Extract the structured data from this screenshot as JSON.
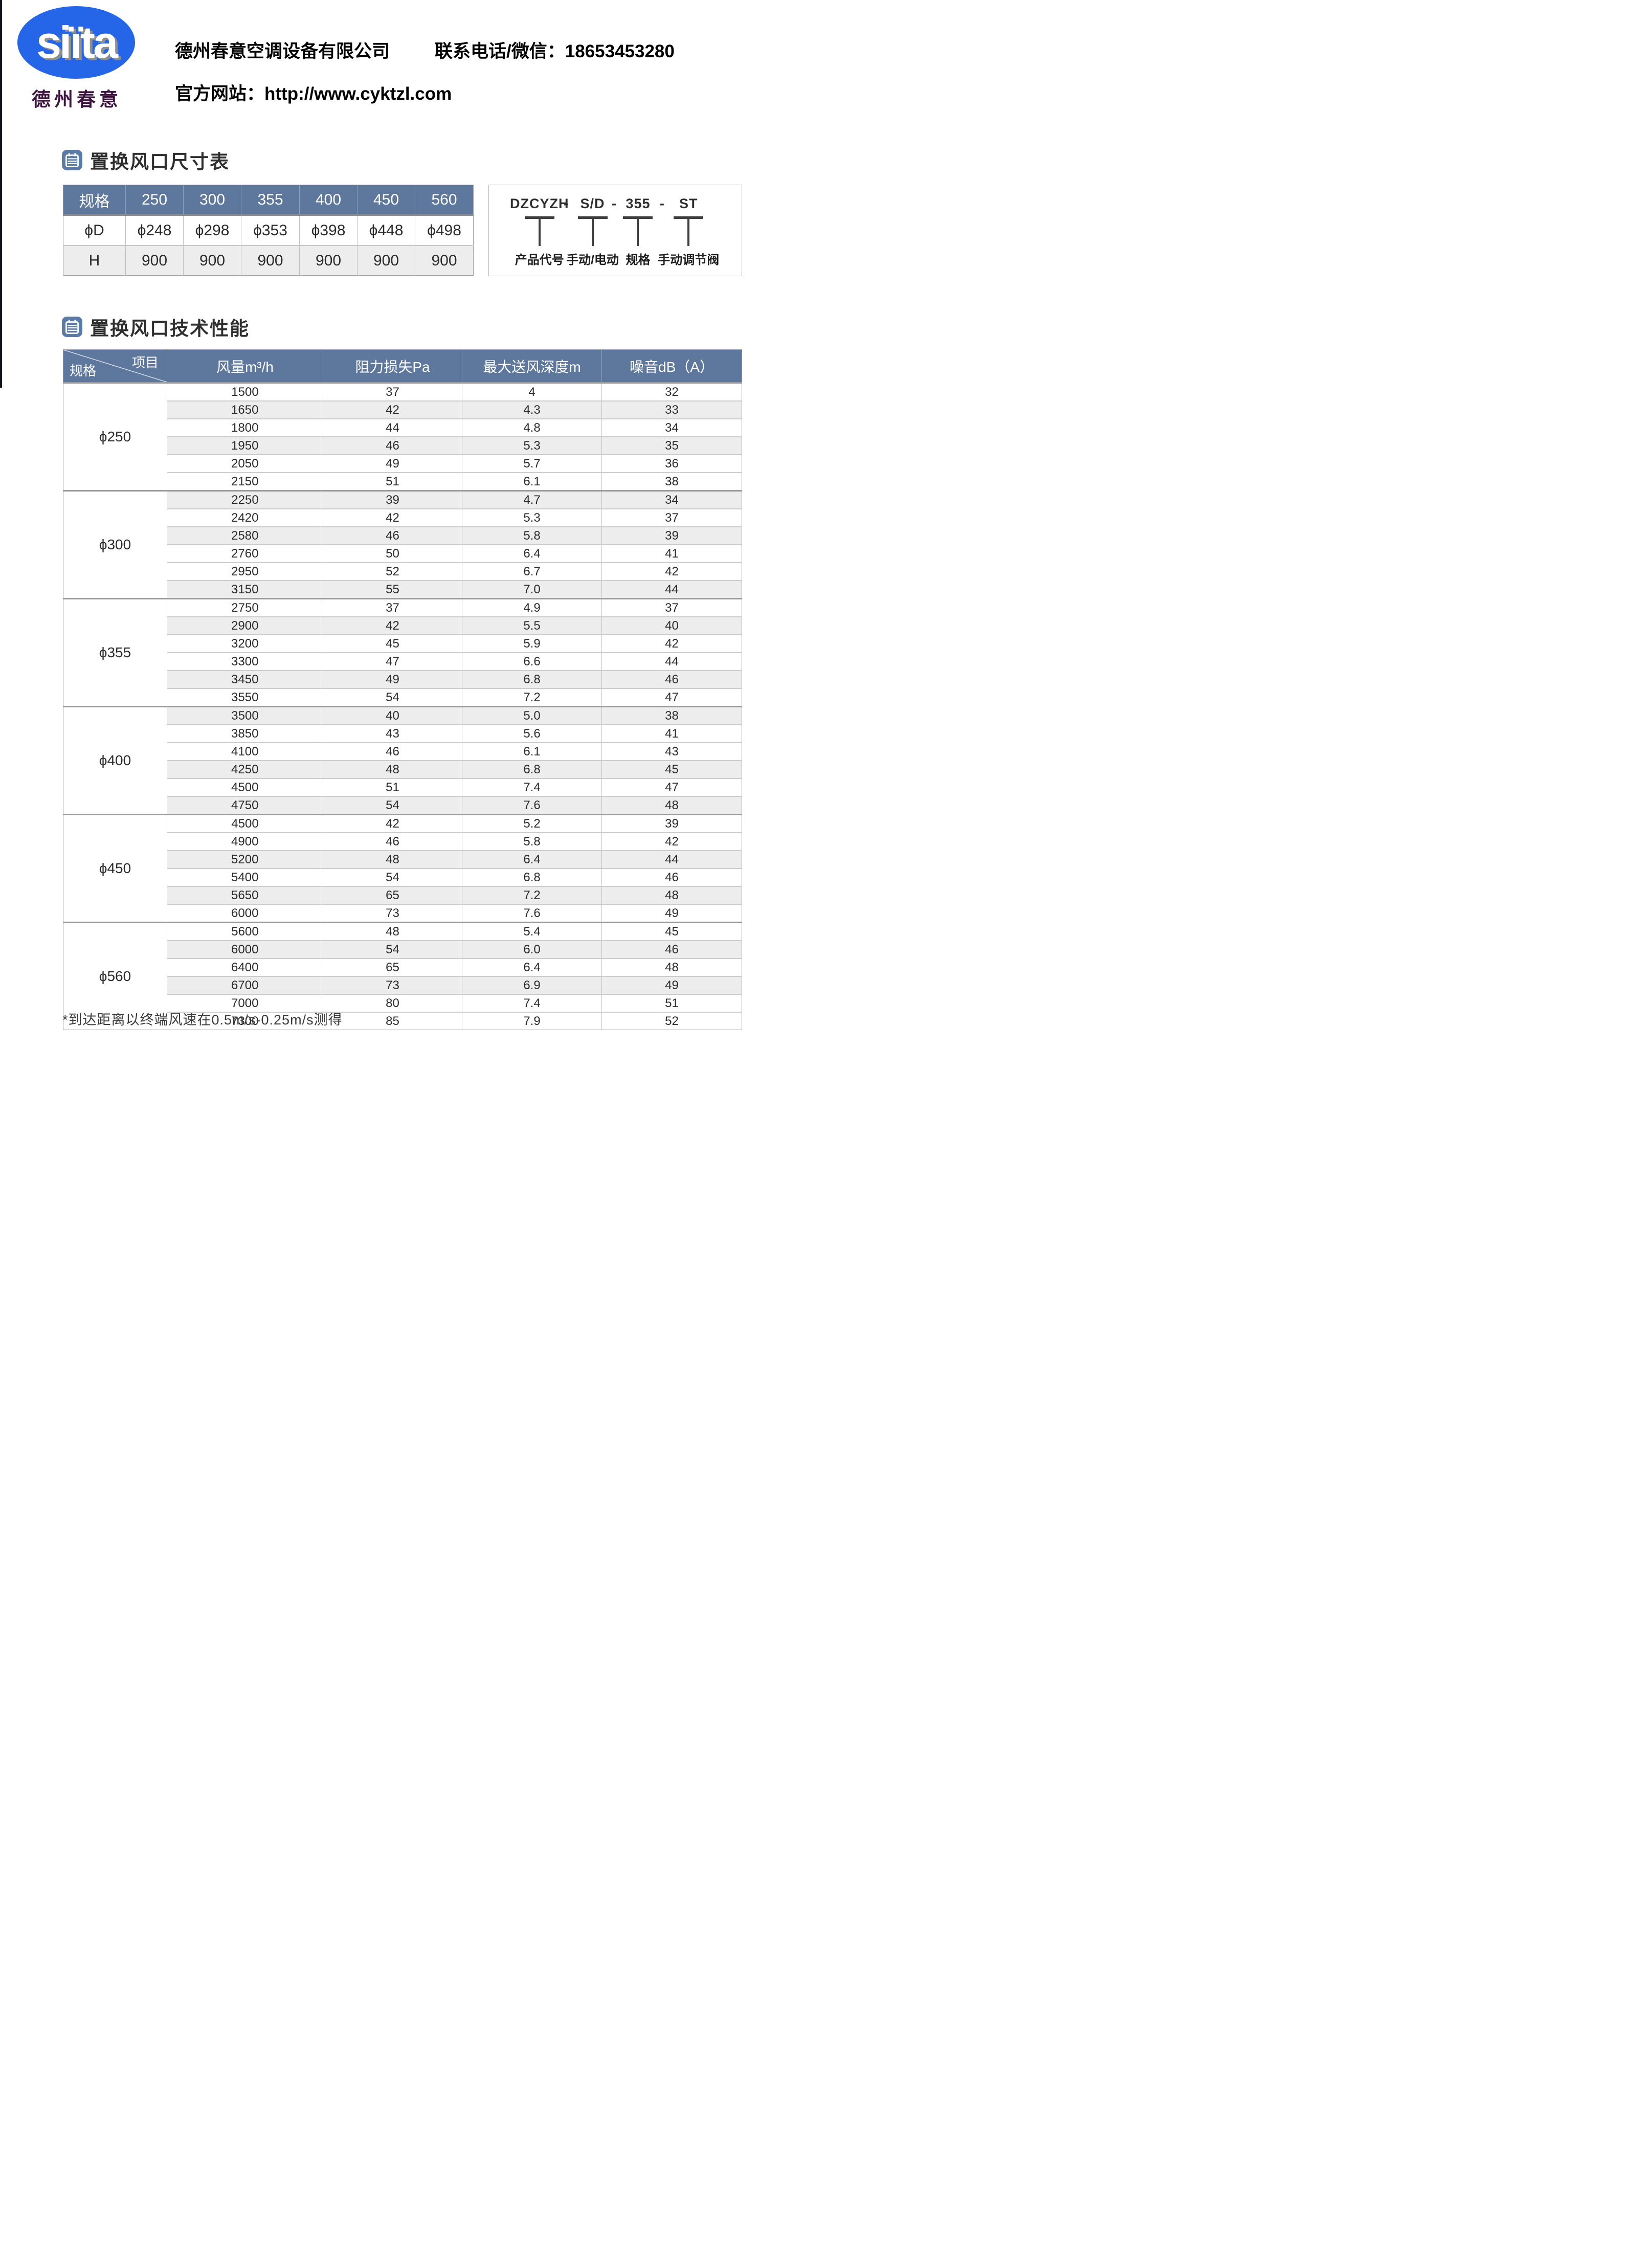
{
  "header": {
    "logo_text": "siïta",
    "logo_subtitle": "德州春意",
    "company_name": "德州春意空调设备有限公司",
    "contact": "联系电话/微信：18653453280",
    "website": "官方网站：http://www.cyktzl.com"
  },
  "sections": {
    "size_title": "置换风口尺寸表",
    "perf_title": "置换风口技术性能"
  },
  "size_table": {
    "header": [
      "规格",
      "250",
      "300",
      "355",
      "400",
      "450",
      "560"
    ],
    "rows": [
      {
        "label": "ϕD",
        "values": [
          "ϕ248",
          "ϕ298",
          "ϕ353",
          "ϕ398",
          "ϕ448",
          "ϕ498"
        ]
      },
      {
        "label": "H",
        "values": [
          "900",
          "900",
          "900",
          "900",
          "900",
          "900"
        ]
      }
    ]
  },
  "code_diagram": {
    "parts": [
      "DZCYZH",
      "S/D",
      "355",
      "ST"
    ],
    "separator": "-",
    "labels": [
      "产品代号",
      "手动/电动",
      "规格",
      "手动调节阀"
    ]
  },
  "perf_table": {
    "corner_top": "项目",
    "corner_bottom": "规格",
    "columns": [
      "风量m³/h",
      "阻力损失Pa",
      "最大送风深度m",
      "噪音dB（A）"
    ],
    "groups": [
      {
        "spec": "ϕ250",
        "rows": [
          [
            "1500",
            "37",
            "4",
            "32"
          ],
          [
            "1650",
            "42",
            "4.3",
            "33"
          ],
          [
            "1800",
            "44",
            "4.8",
            "34"
          ],
          [
            "1950",
            "46",
            "5.3",
            "35"
          ],
          [
            "2050",
            "49",
            "5.7",
            "36"
          ],
          [
            "2150",
            "51",
            "6.1",
            "38"
          ]
        ],
        "shaded": [
          false,
          true,
          false,
          true,
          false,
          false
        ]
      },
      {
        "spec": "ϕ300",
        "rows": [
          [
            "2250",
            "39",
            "4.7",
            "34"
          ],
          [
            "2420",
            "42",
            "5.3",
            "37"
          ],
          [
            "2580",
            "46",
            "5.8",
            "39"
          ],
          [
            "2760",
            "50",
            "6.4",
            "41"
          ],
          [
            "2950",
            "52",
            "6.7",
            "42"
          ],
          [
            "3150",
            "55",
            "7.0",
            "44"
          ]
        ],
        "shaded": [
          true,
          false,
          true,
          false,
          false,
          true
        ]
      },
      {
        "spec": "ϕ355",
        "rows": [
          [
            "2750",
            "37",
            "4.9",
            "37"
          ],
          [
            "2900",
            "42",
            "5.5",
            "40"
          ],
          [
            "3200",
            "45",
            "5.9",
            "42"
          ],
          [
            "3300",
            "47",
            "6.6",
            "44"
          ],
          [
            "3450",
            "49",
            "6.8",
            "46"
          ],
          [
            "3550",
            "54",
            "7.2",
            "47"
          ]
        ],
        "shaded": [
          false,
          true,
          false,
          false,
          true,
          false
        ]
      },
      {
        "spec": "ϕ400",
        "rows": [
          [
            "3500",
            "40",
            "5.0",
            "38"
          ],
          [
            "3850",
            "43",
            "5.6",
            "41"
          ],
          [
            "4100",
            "46",
            "6.1",
            "43"
          ],
          [
            "4250",
            "48",
            "6.8",
            "45"
          ],
          [
            "4500",
            "51",
            "7.4",
            "47"
          ],
          [
            "4750",
            "54",
            "7.6",
            "48"
          ]
        ],
        "shaded": [
          true,
          false,
          false,
          true,
          false,
          true
        ]
      },
      {
        "spec": "ϕ450",
        "rows": [
          [
            "4500",
            "42",
            "5.2",
            "39"
          ],
          [
            "4900",
            "46",
            "5.8",
            "42"
          ],
          [
            "5200",
            "48",
            "6.4",
            "44"
          ],
          [
            "5400",
            "54",
            "6.8",
            "46"
          ],
          [
            "5650",
            "65",
            "7.2",
            "48"
          ],
          [
            "6000",
            "73",
            "7.6",
            "49"
          ]
        ],
        "shaded": [
          false,
          false,
          true,
          false,
          true,
          false
        ]
      },
      {
        "spec": "ϕ560",
        "rows": [
          [
            "5600",
            "48",
            "5.4",
            "45"
          ],
          [
            "6000",
            "54",
            "6.0",
            "46"
          ],
          [
            "6400",
            "65",
            "6.4",
            "48"
          ],
          [
            "6700",
            "73",
            "6.9",
            "49"
          ],
          [
            "7000",
            "80",
            "7.4",
            "51"
          ],
          [
            "7300",
            "85",
            "7.9",
            "52"
          ]
        ],
        "shaded": [
          false,
          true,
          false,
          true,
          false,
          false
        ]
      }
    ]
  },
  "footnote": "*到达距离以终端风速在0.5m/s-0.25m/s测得",
  "colors": {
    "table_header_blue": "#5d789c",
    "logo_blue": "#2565e8",
    "logo_subtitle_maroon": "#3d1340",
    "shaded_row_gray": "#ededed",
    "left_bar_dark": "#10151d"
  }
}
